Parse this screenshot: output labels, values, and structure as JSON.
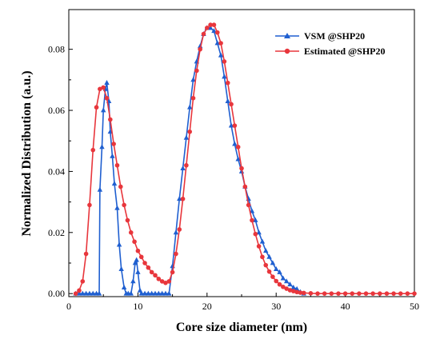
{
  "chart_data": {
    "type": "line",
    "title": "",
    "xlabel": "Core size diameter (nm)",
    "ylabel": "Normalized Distribution (a.u.)",
    "xlim": [
      0,
      50
    ],
    "ylim": [
      -0.001,
      0.093
    ],
    "xticks": [
      0,
      10,
      20,
      30,
      40,
      50
    ],
    "xtick_labels": [
      "0",
      "10",
      "20",
      "30",
      "40",
      "50"
    ],
    "yticks": [
      0.0,
      0.02,
      0.04,
      0.06,
      0.08
    ],
    "ytick_labels": [
      "0.00",
      "0.02",
      "0.04",
      "0.06",
      "0.08"
    ],
    "grid": false,
    "legend_position": "top-right",
    "series": [
      {
        "name": "VSM @SHP20",
        "color": "#1f5fd0",
        "marker": "triangle",
        "x": [
          1.0,
          1.5,
          2.0,
          2.5,
          3.0,
          3.5,
          4.0,
          4.4,
          4.5,
          4.8,
          5.0,
          5.3,
          5.5,
          5.8,
          6.0,
          6.3,
          6.6,
          7.0,
          7.3,
          7.6,
          8.0,
          8.3,
          8.6,
          9.0,
          9.3,
          9.6,
          9.8,
          10.0,
          10.3,
          10.5,
          11.0,
          11.5,
          12.0,
          12.5,
          13.0,
          13.5,
          14.0,
          14.5,
          15.0,
          15.5,
          16.0,
          16.5,
          17.0,
          17.5,
          18.0,
          18.5,
          19.0,
          19.5,
          20.0,
          20.5,
          21.0,
          21.5,
          22.0,
          22.5,
          23.0,
          23.5,
          24.0,
          24.5,
          25.0,
          25.5,
          26.0,
          26.5,
          27.0,
          27.5,
          28.0,
          28.5,
          29.0,
          29.5,
          30.0,
          30.5,
          31.0,
          31.5,
          32.0,
          32.5,
          33.0,
          33.5,
          34.0
        ],
        "y": [
          0.0,
          0.0,
          0.0,
          0.0,
          0.0,
          0.0,
          0.0,
          0.0,
          0.034,
          0.048,
          0.06,
          0.067,
          0.069,
          0.063,
          0.053,
          0.045,
          0.036,
          0.028,
          0.016,
          0.008,
          0.002,
          0.0,
          0.0,
          0.0,
          0.004,
          0.01,
          0.011,
          0.007,
          0.001,
          0.0,
          0.0,
          0.0,
          0.0,
          0.0,
          0.0,
          0.0,
          0.0,
          0.0,
          0.009,
          0.02,
          0.031,
          0.041,
          0.051,
          0.061,
          0.07,
          0.076,
          0.081,
          0.085,
          0.087,
          0.087,
          0.086,
          0.082,
          0.078,
          0.071,
          0.063,
          0.055,
          0.049,
          0.044,
          0.04,
          0.035,
          0.031,
          0.027,
          0.024,
          0.02,
          0.017,
          0.014,
          0.012,
          0.01,
          0.008,
          0.007,
          0.005,
          0.004,
          0.003,
          0.002,
          0.0015,
          0.0005,
          0.0
        ]
      },
      {
        "name": "Estimated @SHP20",
        "color": "#e8363c",
        "marker": "circle",
        "x": [
          1.0,
          1.5,
          2.0,
          2.5,
          3.0,
          3.5,
          4.0,
          4.5,
          5.0,
          5.5,
          6.0,
          6.5,
          7.0,
          7.5,
          8.0,
          8.5,
          9.0,
          9.5,
          10.0,
          10.5,
          11.0,
          11.5,
          12.0,
          12.5,
          13.0,
          13.5,
          14.0,
          14.5,
          15.0,
          15.5,
          16.0,
          16.5,
          17.0,
          17.5,
          18.0,
          18.5,
          19.0,
          19.5,
          20.0,
          20.5,
          21.0,
          21.5,
          22.0,
          22.5,
          23.0,
          23.5,
          24.0,
          24.5,
          25.0,
          25.5,
          26.0,
          26.5,
          27.0,
          27.5,
          28.0,
          28.5,
          29.0,
          29.5,
          30.0,
          30.5,
          31.0,
          31.5,
          32.0,
          32.5,
          33.0,
          33.5,
          34.0,
          35.0,
          36.0,
          37.0,
          38.0,
          39.0,
          40.0,
          41.0,
          42.0,
          43.0,
          44.0,
          45.0,
          46.0,
          47.0,
          48.0,
          49.0,
          50.0
        ],
        "y": [
          0.0,
          0.001,
          0.004,
          0.013,
          0.029,
          0.047,
          0.061,
          0.067,
          0.0675,
          0.064,
          0.057,
          0.049,
          0.042,
          0.035,
          0.029,
          0.024,
          0.02,
          0.017,
          0.014,
          0.012,
          0.01,
          0.0085,
          0.007,
          0.006,
          0.0048,
          0.004,
          0.0035,
          0.004,
          0.007,
          0.013,
          0.021,
          0.031,
          0.042,
          0.053,
          0.064,
          0.073,
          0.08,
          0.085,
          0.087,
          0.088,
          0.088,
          0.0855,
          0.082,
          0.076,
          0.069,
          0.062,
          0.055,
          0.048,
          0.041,
          0.035,
          0.029,
          0.024,
          0.0195,
          0.0155,
          0.012,
          0.0093,
          0.0072,
          0.0055,
          0.0041,
          0.003,
          0.0022,
          0.0016,
          0.0011,
          0.0008,
          0.0005,
          0.0003,
          0.0002,
          0.0001,
          0.0,
          0.0,
          0.0,
          0.0,
          0.0,
          0.0,
          0.0,
          0.0,
          0.0,
          0.0,
          0.0,
          0.0,
          0.0,
          0.0,
          0.0
        ]
      }
    ]
  }
}
